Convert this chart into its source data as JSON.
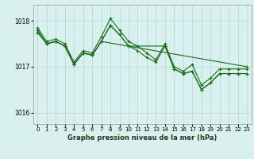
{
  "xlabel": "Graphe pression niveau de la mer (hPa)",
  "ylim": [
    1015.75,
    1018.35
  ],
  "xlim": [
    -0.5,
    23.5
  ],
  "yticks": [
    1016,
    1017,
    1018
  ],
  "xticks": [
    0,
    1,
    2,
    3,
    4,
    5,
    6,
    7,
    8,
    9,
    10,
    11,
    12,
    13,
    14,
    15,
    16,
    17,
    18,
    19,
    20,
    21,
    22,
    23
  ],
  "bg_color": "#d8f0ee",
  "grid_color": "#b8dbd8",
  "line_color": "#1a6b1a",
  "series": [
    {
      "x": [
        0,
        1,
        2,
        3,
        4,
        5,
        6,
        7,
        8,
        9,
        10,
        11,
        12,
        13,
        14,
        15,
        16,
        17,
        18,
        19,
        20,
        21,
        22,
        23
      ],
      "y": [
        1017.85,
        1017.55,
        1017.6,
        1017.5,
        1017.1,
        1017.35,
        1017.3,
        1017.65,
        1018.05,
        1017.8,
        1017.55,
        1017.45,
        1017.3,
        1017.15,
        1017.5,
        1017.0,
        1016.9,
        1017.05,
        1016.6,
        1016.75,
        1016.95,
        1016.95,
        1016.95,
        1016.95
      ]
    },
    {
      "x": [
        0,
        1,
        2,
        3,
        4,
        5,
        6,
        7,
        8,
        9,
        10,
        14,
        15,
        16,
        17,
        18,
        19,
        20,
        21,
        22,
        23
      ],
      "y": [
        1017.8,
        1017.5,
        1017.55,
        1017.45,
        1017.05,
        1017.3,
        1017.25,
        1017.55,
        1017.9,
        1017.7,
        1017.45,
        1017.45,
        1016.95,
        1016.85,
        1016.9,
        1016.5,
        1016.65,
        1016.85,
        1016.85,
        1016.85,
        1016.85
      ]
    },
    {
      "x": [
        0,
        1,
        2,
        3,
        4,
        5,
        6,
        7,
        23
      ],
      "y": [
        1017.75,
        1017.5,
        1017.55,
        1017.45,
        1017.05,
        1017.3,
        1017.25,
        1017.55,
        1017.0
      ]
    },
    {
      "x": [
        0,
        1,
        2,
        3,
        4,
        5,
        6,
        7,
        8,
        9,
        10,
        11,
        12,
        13,
        14,
        15,
        16,
        17,
        18,
        19,
        20,
        21,
        22,
        23
      ],
      "y": [
        1017.75,
        1017.5,
        1017.55,
        1017.45,
        1017.05,
        1017.3,
        1017.25,
        1017.55,
        1017.9,
        1017.7,
        1017.45,
        1017.35,
        1017.2,
        1017.1,
        1017.45,
        1016.95,
        1016.85,
        1016.9,
        1016.5,
        1016.65,
        1016.85,
        1016.85,
        1016.85,
        1016.85
      ]
    }
  ]
}
